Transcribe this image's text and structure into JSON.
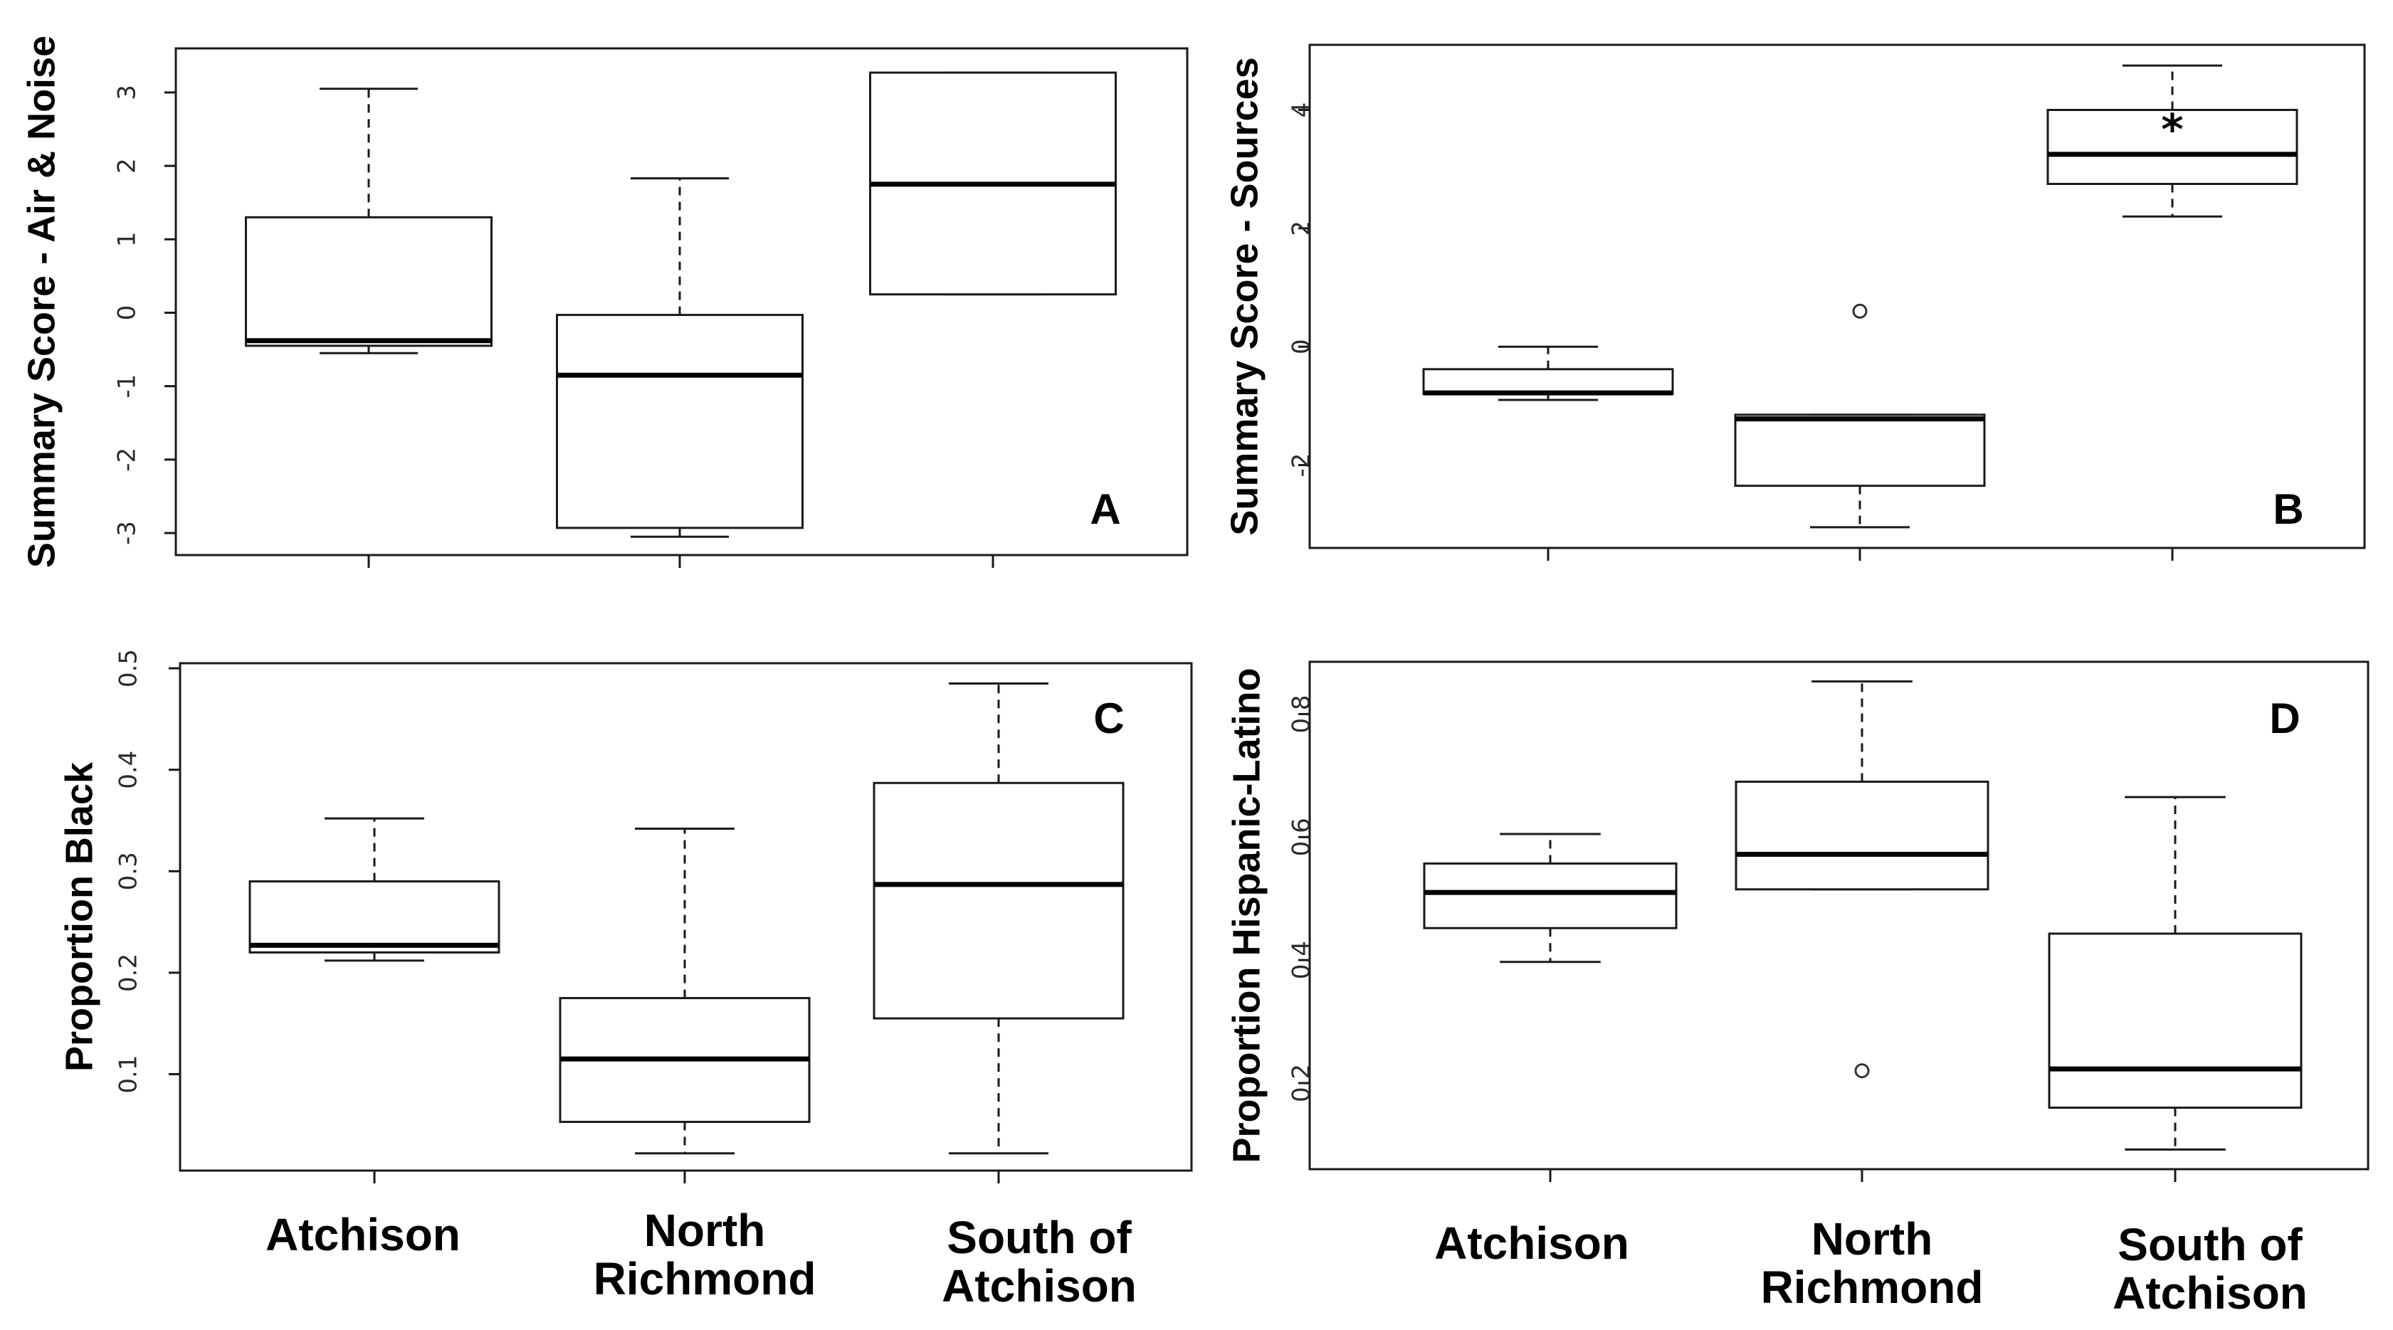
{
  "chart_data": [
    {
      "type": "box",
      "panel": "A",
      "ylabel": "Summary Score - Air & Noise",
      "ylim": [
        -3.3,
        3.6
      ],
      "yticks": [
        -3,
        -2,
        -1,
        0,
        1,
        2,
        3
      ],
      "ytick_labels": [
        "-3",
        "-2",
        "-1",
        "0",
        "1",
        "2",
        "3"
      ],
      "categories": [
        "Atchison",
        "North Richmond",
        "South of Atchison"
      ],
      "boxes": [
        {
          "min": -0.55,
          "q1": -0.45,
          "median": -0.38,
          "q3": 1.3,
          "max": 3.05,
          "outliers": []
        },
        {
          "min": -3.05,
          "q1": -2.93,
          "median": -0.85,
          "q3": -0.03,
          "max": 1.83,
          "outliers": []
        },
        {
          "min": 0.25,
          "q1": 0.25,
          "median": 1.75,
          "q3": 3.27,
          "max": 3.27,
          "outliers": []
        }
      ],
      "annotations": []
    },
    {
      "type": "box",
      "panel": "B",
      "ylabel": "Summary Score - Sources",
      "ylim": [
        -3.4,
        5.1
      ],
      "yticks": [
        -2,
        0,
        2,
        4
      ],
      "ytick_labels": [
        "-2",
        "0",
        "2",
        "4"
      ],
      "categories": [
        "Atchison",
        "North Richmond",
        "South of Atchison"
      ],
      "boxes": [
        {
          "min": -0.9,
          "q1": -0.8,
          "median": -0.78,
          "q3": -0.38,
          "max": 0.0,
          "outliers": []
        },
        {
          "min": -3.05,
          "q1": -2.35,
          "median": -1.22,
          "q3": -1.15,
          "max": -1.15,
          "outliers": [
            0.6
          ]
        },
        {
          "min": 2.2,
          "q1": 2.75,
          "median": 3.25,
          "q3": 4.0,
          "max": 4.75,
          "outliers": []
        }
      ],
      "annotations": [
        {
          "text": "*",
          "category": "South of Atchison"
        }
      ]
    },
    {
      "type": "box",
      "panel": "C",
      "ylabel": "Proportion Black",
      "ylim": [
        0.005,
        0.505
      ],
      "yticks": [
        0.1,
        0.2,
        0.3,
        0.4,
        0.5
      ],
      "ytick_labels": [
        "0.1",
        "0.2",
        "0.3",
        "0.4",
        "0.5"
      ],
      "categories": [
        "Atchison",
        "North Richmond",
        "South of Atchison"
      ],
      "boxes": [
        {
          "min": 0.212,
          "q1": 0.22,
          "median": 0.227,
          "q3": 0.29,
          "max": 0.352,
          "outliers": []
        },
        {
          "min": 0.022,
          "q1": 0.053,
          "median": 0.115,
          "q3": 0.175,
          "max": 0.342,
          "outliers": []
        },
        {
          "min": 0.022,
          "q1": 0.155,
          "median": 0.287,
          "q3": 0.387,
          "max": 0.485,
          "outliers": []
        }
      ],
      "annotations": []
    },
    {
      "type": "box",
      "panel": "D",
      "ylabel": "Proportion Hispanic-Latino",
      "ylim": [
        0.06,
        0.885
      ],
      "yticks": [
        0.2,
        0.4,
        0.6,
        0.8
      ],
      "ytick_labels": [
        "0.2",
        "0.4",
        "0.6",
        "0.8"
      ],
      "categories": [
        "Atchison",
        "North Richmond",
        "South of Atchison"
      ],
      "boxes": [
        {
          "min": 0.397,
          "q1": 0.452,
          "median": 0.51,
          "q3": 0.557,
          "max": 0.605,
          "outliers": []
        },
        {
          "min": 0.515,
          "q1": 0.515,
          "median": 0.572,
          "q3": 0.69,
          "max": 0.853,
          "outliers": [
            0.22
          ]
        },
        {
          "min": 0.092,
          "q1": 0.16,
          "median": 0.223,
          "q3": 0.443,
          "max": 0.665,
          "outliers": []
        }
      ],
      "annotations": []
    }
  ],
  "x_axis_labels": {
    "left": [
      {
        "lines": [
          "Atchison"
        ]
      },
      {
        "lines": [
          "North",
          "Richmond"
        ]
      },
      {
        "lines": [
          "South of",
          "Atchison"
        ]
      }
    ],
    "right": [
      {
        "lines": [
          "Atchison"
        ]
      },
      {
        "lines": [
          "North",
          "Richmond"
        ]
      },
      {
        "lines": [
          "South of",
          "Atchison"
        ]
      }
    ]
  },
  "colors": {
    "box_fill": "#ffffff",
    "line": "#1a1a1a",
    "background": "#ffffff"
  }
}
